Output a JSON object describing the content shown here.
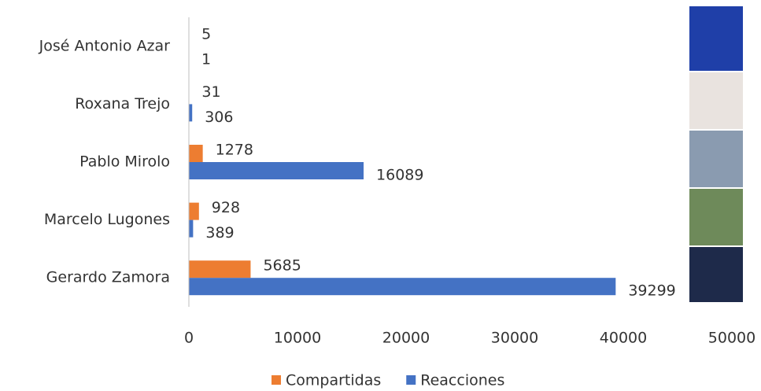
{
  "chart_data": {
    "type": "hbar",
    "categories": [
      "José Antonio Azar",
      "Roxana Trejo",
      "Pablo Mirolo",
      "Marcelo Lugones",
      "Gerardo Zamora"
    ],
    "series": [
      {
        "name": "Compartidas",
        "color": "#ed7d31",
        "values": [
          5,
          31,
          1278,
          928,
          5685
        ]
      },
      {
        "name": "Reacciones",
        "color": "#4472c4",
        "values": [
          1,
          306,
          16089,
          389,
          39299
        ]
      }
    ],
    "xlim": [
      0,
      50000
    ],
    "xticks": [
      0,
      10000,
      20000,
      30000,
      40000,
      50000
    ],
    "legend": "bottom"
  }
}
